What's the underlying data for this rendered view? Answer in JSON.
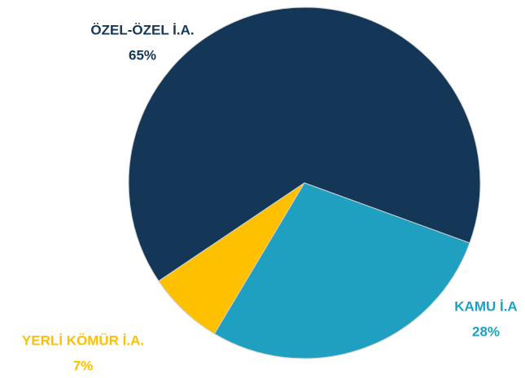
{
  "chart_data": {
    "type": "pie",
    "categories": [
      "ÖZEL-ÖZEL İ.A.",
      "KAMU İ.A",
      "YERLİ KÖMÜR İ.A."
    ],
    "values": [
      65,
      28,
      7
    ],
    "value_labels": [
      "65%",
      "28%",
      "7%"
    ],
    "colors": [
      "#143757",
      "#1fa0c0",
      "#ffc000"
    ]
  }
}
